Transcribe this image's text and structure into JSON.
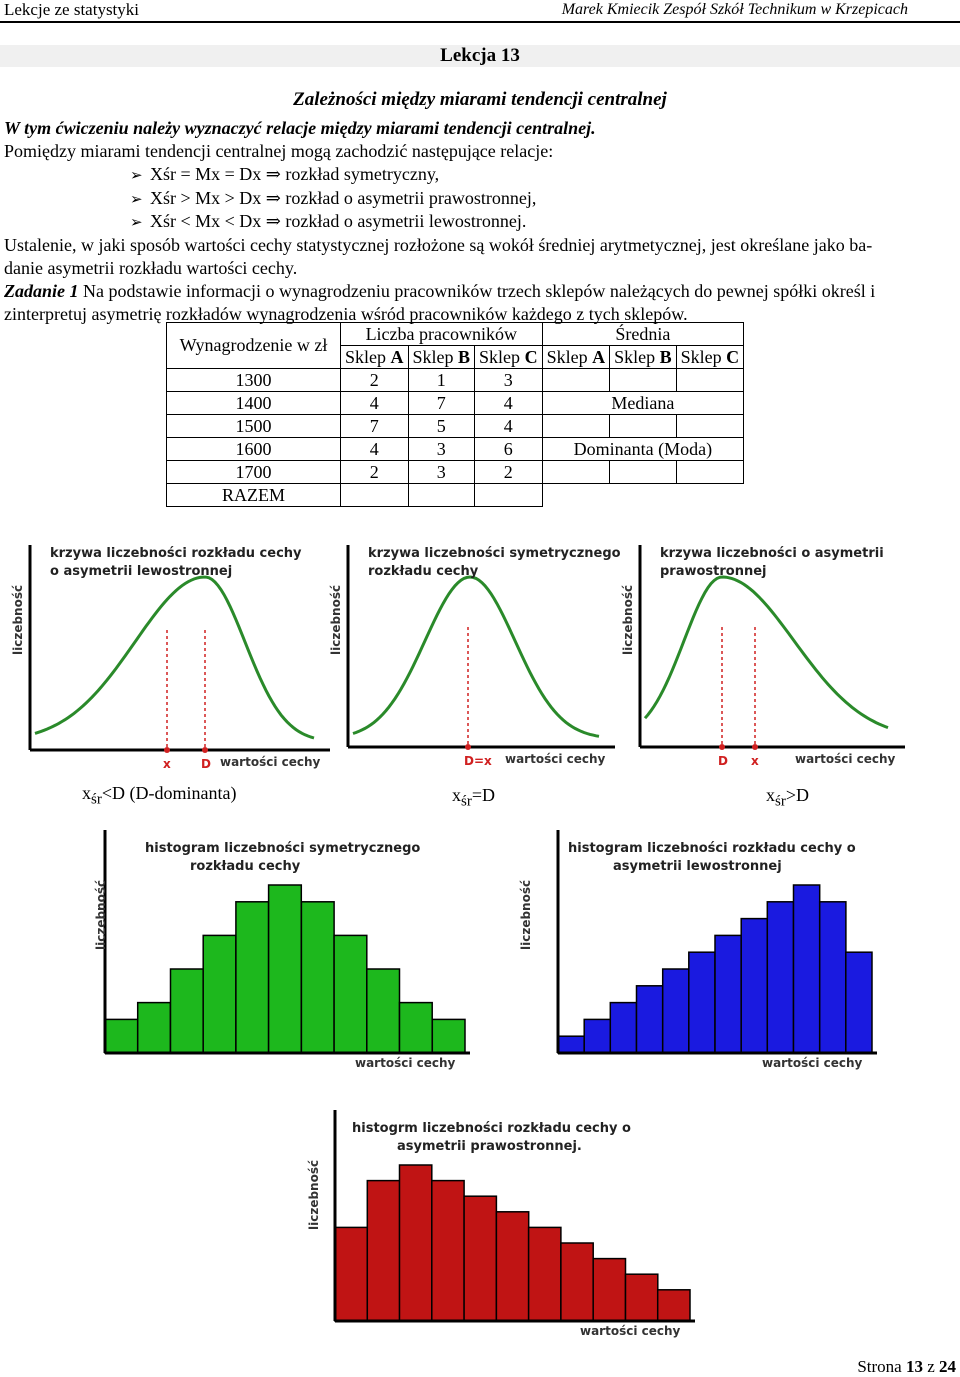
{
  "header": {
    "left": "Lekcje ze statystyki",
    "right": "Marek Kmiecik Zespół Szkół Technikum w Krzepicach"
  },
  "lesson_title": "Lekcja 13",
  "subtitle": "Zależności między miarami tendencji centralnej",
  "intro_italic": "W tym ćwiczeniu należy wyznaczyć relacje między miarami tendencji centralnej.",
  "intro": "Pomiędzy miarami tendencji centralnej mogą zachodzić następujące relacje:",
  "relations": [
    "Xśr = Mx = Dx ⇒ rozkład symetryczny,",
    "Xśr > Mx > Dx ⇒ rozkład o asymetrii prawostronnej,",
    "Xśr < Mx < Dx ⇒ rozkład o asymetrii lewostronnej."
  ],
  "paragraph_line1": "Ustalenie, w jaki sposób wartości cechy statystycznej rozłożone są wokół średniej arytmetycznej, jest określane jako ba-",
  "paragraph_line2": "danie asymetrii rozkładu wartości cechy.",
  "task_label": "Zadanie 1",
  "task_line1": " Na podstawie informacji o wynagrodzeniu pracowników trzech sklepów należących do pewnej spółki określ i",
  "task_line2": "zinterpretuj asymetrię rozkładów wynagrodzenia wśród pracowników każdego z tych sklepów.",
  "table": {
    "col_wage": "Wynagrodzenie w zł",
    "group_count": "Liczba pracowników",
    "group_mean": "Średnia",
    "shop_prefix": "Sklep ",
    "shops": [
      "A",
      "B",
      "C"
    ],
    "rows": [
      {
        "wage": "1300",
        "a": "2",
        "b": "1",
        "c": "3"
      },
      {
        "wage": "1400",
        "a": "4",
        "b": "7",
        "c": "4"
      },
      {
        "wage": "1500",
        "a": "7",
        "b": "5",
        "c": "4"
      },
      {
        "wage": "1600",
        "a": "4",
        "b": "3",
        "c": "6"
      },
      {
        "wage": "1700",
        "a": "2",
        "b": "3",
        "c": "2"
      },
      {
        "wage": "RAZEM",
        "a": "",
        "b": "",
        "c": ""
      }
    ],
    "median_label": "Mediana",
    "mode_label": "Dominanta (Moda)"
  },
  "curves": [
    {
      "title1": "krzywa liczebności rozkładu cechy",
      "title2": "o asymetrii lewostronnej",
      "ylabel": "liczebność",
      "xlabel": "wartości cechy",
      "marker1": "x",
      "marker2": "D",
      "curve_color": "#2a8a2a"
    },
    {
      "title1": "krzywa liczebności symetrycznego",
      "title2": "rozkładu cechy",
      "ylabel": "liczebność",
      "xlabel": "wartości cechy",
      "marker1": "D=x",
      "marker2": "",
      "curve_color": "#2a8a2a"
    },
    {
      "title1": "krzywa liczebności o asymetrii",
      "title2": "prawostronnej",
      "ylabel": "liczebność",
      "xlabel": "wartości cechy",
      "marker1": "D",
      "marker2": "x",
      "curve_color": "#2a8a2a"
    }
  ],
  "captions": [
    {
      "pre": "x",
      "sub": "śr",
      "post": "<D  (D-dominanta)"
    },
    {
      "pre": "x",
      "sub": "śr",
      "post": "=D"
    },
    {
      "pre": "x",
      "sub": "śr",
      "post": ">D"
    }
  ],
  "histograms": [
    {
      "title1": "histogram liczebności symetrycznego",
      "title2": "rozkładu cechy",
      "ylabel": "liczebność",
      "xlabel": "wartości cechy",
      "color": "#1db81d",
      "bars": [
        2,
        3,
        5,
        7,
        9,
        10,
        9,
        7,
        5,
        3,
        2
      ]
    },
    {
      "title1": "histogram liczebności rozkładu cechy o",
      "title2": "asymetrii lewostronnej",
      "ylabel": "liczebność",
      "xlabel": "wartości cechy",
      "color": "#1a1ae0",
      "bars": [
        1,
        2,
        3,
        4,
        5,
        6,
        7,
        8,
        9,
        10,
        9,
        6
      ]
    },
    {
      "title1": "histogrm liczebności rozkładu cechy o",
      "title2": "asymetrii prawostronnej.",
      "ylabel": "liczebność",
      "xlabel": "wartości cechy",
      "color": "#c01414",
      "bars": [
        6,
        9,
        10,
        9,
        8,
        7,
        6,
        5,
        4,
        3,
        2
      ]
    }
  ],
  "footer": {
    "pre": "Strona ",
    "page": "13",
    "mid": " z ",
    "total": "24"
  }
}
